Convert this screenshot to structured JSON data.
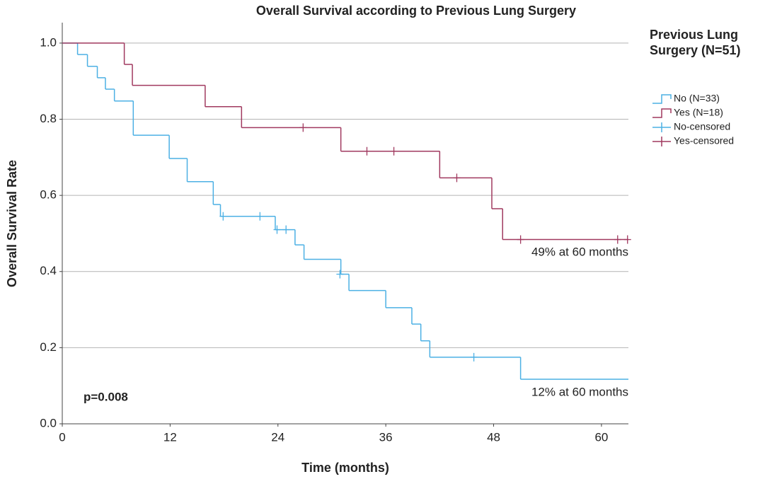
{
  "chart_data": {
    "type": "survival",
    "title": "Overall Survival according to Previous Lung Surgery",
    "xlabel": "Time (months)",
    "ylabel": "Overall Survival Rate",
    "legend_title": "Previous Lung Surgery (N=51)",
    "annotations": [
      "49% at 60 months",
      "12% at 60 months",
      "p=0.008"
    ],
    "xlim": [
      0,
      63
    ],
    "xticks": [
      0,
      12,
      24,
      36,
      48,
      60
    ],
    "ylim": [
      0,
      1.05
    ],
    "yticks": [
      {
        "value": 0,
        "label": "0.0"
      },
      0.2,
      0.4,
      0.6,
      0.8,
      {
        "value": 1,
        "label": "1.0"
      }
    ],
    "grid": true,
    "legend": "right",
    "series": [
      {
        "name": "No (N=33)",
        "color": "#4cb0e4",
        "drawstyle": "steps-post",
        "x": [
          0,
          1.7,
          2.8,
          3.9,
          4.8,
          5.8,
          7.9,
          11.9,
          13.9,
          16.8,
          17.6,
          23.7,
          25.9,
          26.9,
          31,
          31.9,
          36,
          38.9,
          39.9,
          40.9,
          51,
          63
        ],
        "values": [
          1,
          0.97,
          0.939,
          0.909,
          0.879,
          0.848,
          0.758,
          0.697,
          0.636,
          0.576,
          0.545,
          0.51,
          0.47,
          0.432,
          0.393,
          0.35,
          0.305,
          0.262,
          0.218,
          0.175,
          0.117,
          0.117
        ]
      },
      {
        "name": "Yes (N=18)",
        "color": "#a0395f",
        "drawstyle": "steps-post",
        "x": [
          0,
          6.9,
          7.8,
          15.9,
          19.95,
          31,
          42,
          47.8,
          49,
          63
        ],
        "values": [
          1,
          0.944,
          0.889,
          0.833,
          0.778,
          0.716,
          0.646,
          0.565,
          0.484,
          0.484
        ]
      },
      {
        "name": "No-censored",
        "color": "#4cb0e4",
        "marker": "+",
        "x": [
          17.9,
          22,
          23.9,
          24.9,
          30.9,
          45.8
        ],
        "values": [
          0.545,
          0.545,
          0.51,
          0.51,
          0.393,
          0.175
        ]
      },
      {
        "name": "Yes-censored",
        "color": "#a0395f",
        "marker": "+",
        "x": [
          26.8,
          33.9,
          36.9,
          43.9,
          51,
          61.8,
          62.9
        ],
        "values": [
          0.778,
          0.716,
          0.716,
          0.646,
          0.484,
          0.484,
          0.484
        ]
      }
    ]
  }
}
